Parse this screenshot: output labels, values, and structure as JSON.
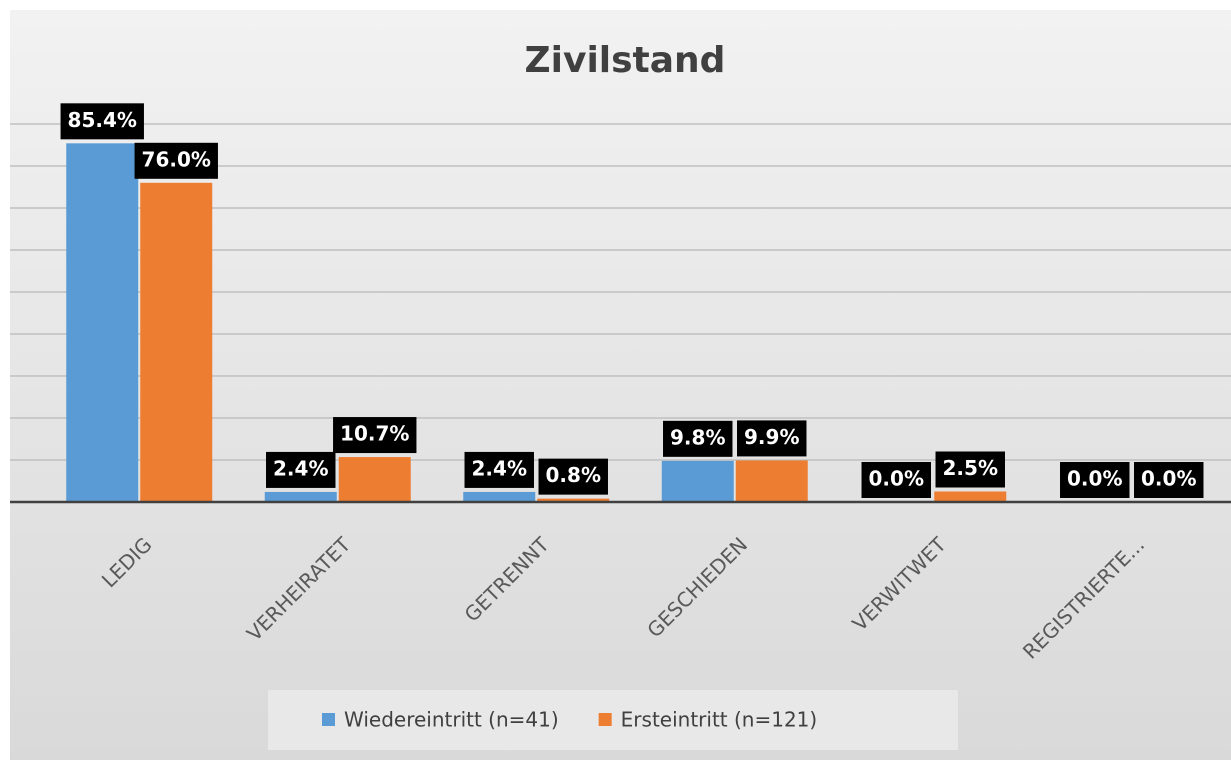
{
  "chart_data": {
    "type": "bar",
    "title": "Zivilstand",
    "categories": [
      "LEDIG",
      "VERHEIRATET",
      "GETRENNT",
      "GESCHIEDEN",
      "VERWITWET",
      "REGISTRIERTE..."
    ],
    "series": [
      {
        "name": "Wiedereintritt (n=41)",
        "color": "#5b9bd5",
        "values": [
          85.4,
          2.4,
          2.4,
          9.8,
          0.0,
          0.0
        ],
        "value_labels": [
          "85.4%",
          "2.4%",
          "2.4%",
          "9.8%",
          "0.0%",
          "0.0%"
        ]
      },
      {
        "name": "Ersteintritt (n=121)",
        "color": "#ed7d31",
        "values": [
          76.0,
          10.7,
          0.8,
          9.9,
          2.5,
          0.0
        ],
        "value_labels": [
          "76.0%",
          "10.7%",
          "0.8%",
          "9.9%",
          "2.5%",
          "0.0%"
        ]
      }
    ],
    "ylim": [
      0,
      90
    ],
    "yticks": [
      0,
      10,
      20,
      30,
      40,
      50,
      60,
      70,
      80,
      90
    ],
    "grid": true,
    "show_tick_labels": false,
    "legend": "bottom"
  }
}
